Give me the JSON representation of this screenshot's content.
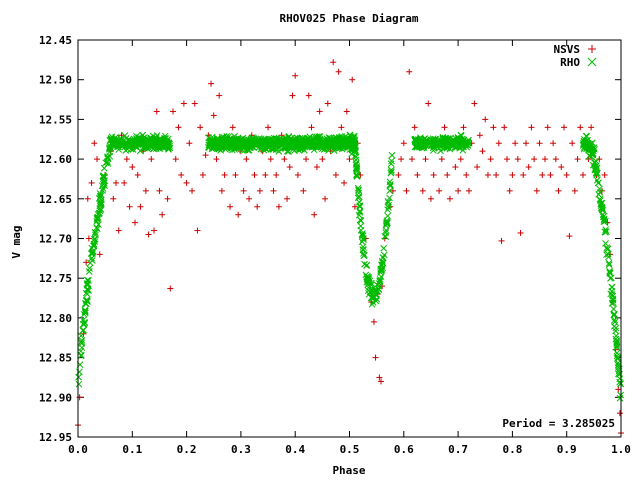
{
  "chart_data": {
    "type": "scatter",
    "title": "RHOV025 Phase Diagram",
    "xlabel": "Phase",
    "ylabel": "V mag",
    "xlim": [
      0.0,
      1.0
    ],
    "ylim": [
      12.95,
      12.45
    ],
    "y_inverted": true,
    "x_ticks": [
      "0.0",
      "0.1",
      "0.2",
      "0.3",
      "0.4",
      "0.5",
      "0.6",
      "0.7",
      "0.8",
      "0.9",
      "1.0"
    ],
    "y_ticks": [
      "12.45",
      "12.50",
      "12.55",
      "12.60",
      "12.65",
      "12.70",
      "12.75",
      "12.80",
      "12.85",
      "12.90",
      "12.95"
    ],
    "annotation": "Period = 3.285025",
    "legend_position": "top-right",
    "series": [
      {
        "name": "NSVS",
        "marker": "plus",
        "color": "#cc0000",
        "points": [
          [
            0.0,
            12.935
          ],
          [
            0.003,
            12.9
          ],
          [
            0.01,
            12.82
          ],
          [
            0.015,
            12.73
          ],
          [
            0.018,
            12.65
          ],
          [
            0.02,
            12.7
          ],
          [
            0.025,
            12.63
          ],
          [
            0.03,
            12.58
          ],
          [
            0.035,
            12.6
          ],
          [
            0.04,
            12.72
          ],
          [
            0.05,
            12.62
          ],
          [
            0.06,
            12.59
          ],
          [
            0.065,
            12.65
          ],
          [
            0.07,
            12.63
          ],
          [
            0.075,
            12.69
          ],
          [
            0.08,
            12.57
          ],
          [
            0.085,
            12.63
          ],
          [
            0.09,
            12.6
          ],
          [
            0.095,
            12.66
          ],
          [
            0.1,
            12.61
          ],
          [
            0.105,
            12.68
          ],
          [
            0.11,
            12.62
          ],
          [
            0.115,
            12.66
          ],
          [
            0.12,
            12.59
          ],
          [
            0.125,
            12.64
          ],
          [
            0.13,
            12.695
          ],
          [
            0.135,
            12.6
          ],
          [
            0.14,
            12.69
          ],
          [
            0.145,
            12.54
          ],
          [
            0.15,
            12.64
          ],
          [
            0.155,
            12.67
          ],
          [
            0.16,
            12.58
          ],
          [
            0.165,
            12.65
          ],
          [
            0.17,
            12.763
          ],
          [
            0.175,
            12.54
          ],
          [
            0.18,
            12.6
          ],
          [
            0.185,
            12.56
          ],
          [
            0.19,
            12.62
          ],
          [
            0.195,
            12.53
          ],
          [
            0.2,
            12.63
          ],
          [
            0.205,
            12.58
          ],
          [
            0.21,
            12.64
          ],
          [
            0.215,
            12.53
          ],
          [
            0.22,
            12.69
          ],
          [
            0.225,
            12.56
          ],
          [
            0.23,
            12.62
          ],
          [
            0.235,
            12.595
          ],
          [
            0.24,
            12.57
          ],
          [
            0.245,
            12.505
          ],
          [
            0.25,
            12.545
          ],
          [
            0.255,
            12.6
          ],
          [
            0.26,
            12.52
          ],
          [
            0.265,
            12.64
          ],
          [
            0.27,
            12.62
          ],
          [
            0.275,
            12.58
          ],
          [
            0.28,
            12.66
          ],
          [
            0.285,
            12.56
          ],
          [
            0.29,
            12.62
          ],
          [
            0.295,
            12.67
          ],
          [
            0.3,
            12.59
          ],
          [
            0.305,
            12.64
          ],
          [
            0.31,
            12.6
          ],
          [
            0.315,
            12.65
          ],
          [
            0.32,
            12.57
          ],
          [
            0.325,
            12.62
          ],
          [
            0.33,
            12.66
          ],
          [
            0.335,
            12.64
          ],
          [
            0.34,
            12.59
          ],
          [
            0.345,
            12.62
          ],
          [
            0.35,
            12.56
          ],
          [
            0.355,
            12.6
          ],
          [
            0.36,
            12.64
          ],
          [
            0.365,
            12.62
          ],
          [
            0.37,
            12.66
          ],
          [
            0.375,
            12.57
          ],
          [
            0.38,
            12.6
          ],
          [
            0.385,
            12.65
          ],
          [
            0.39,
            12.61
          ],
          [
            0.395,
            12.52
          ],
          [
            0.4,
            12.495
          ],
          [
            0.405,
            12.62
          ],
          [
            0.41,
            12.58
          ],
          [
            0.415,
            12.64
          ],
          [
            0.42,
            12.6
          ],
          [
            0.425,
            12.52
          ],
          [
            0.43,
            12.56
          ],
          [
            0.435,
            12.67
          ],
          [
            0.44,
            12.61
          ],
          [
            0.445,
            12.54
          ],
          [
            0.45,
            12.6
          ],
          [
            0.455,
            12.65
          ],
          [
            0.46,
            12.53
          ],
          [
            0.465,
            12.59
          ],
          [
            0.47,
            12.478
          ],
          [
            0.475,
            12.62
          ],
          [
            0.48,
            12.49
          ],
          [
            0.485,
            12.56
          ],
          [
            0.49,
            12.63
          ],
          [
            0.495,
            12.54
          ],
          [
            0.5,
            12.6
          ],
          [
            0.505,
            12.5
          ],
          [
            0.51,
            12.66
          ],
          [
            0.515,
            12.58
          ],
          [
            0.52,
            12.62
          ],
          [
            0.53,
            12.7
          ],
          [
            0.54,
            12.78
          ],
          [
            0.545,
            12.805
          ],
          [
            0.548,
            12.85
          ],
          [
            0.552,
            12.77
          ],
          [
            0.555,
            12.875
          ],
          [
            0.558,
            12.88
          ],
          [
            0.56,
            12.76
          ],
          [
            0.565,
            12.7
          ],
          [
            0.575,
            12.66
          ],
          [
            0.58,
            12.64
          ],
          [
            0.59,
            12.62
          ],
          [
            0.595,
            12.6
          ],
          [
            0.6,
            12.58
          ],
          [
            0.605,
            12.64
          ],
          [
            0.61,
            12.49
          ],
          [
            0.615,
            12.6
          ],
          [
            0.62,
            12.56
          ],
          [
            0.625,
            12.62
          ],
          [
            0.63,
            12.58
          ],
          [
            0.635,
            12.64
          ],
          [
            0.64,
            12.6
          ],
          [
            0.645,
            12.53
          ],
          [
            0.65,
            12.65
          ],
          [
            0.655,
            12.62
          ],
          [
            0.66,
            12.58
          ],
          [
            0.665,
            12.64
          ],
          [
            0.67,
            12.6
          ],
          [
            0.675,
            12.56
          ],
          [
            0.68,
            12.62
          ],
          [
            0.685,
            12.65
          ],
          [
            0.69,
            12.58
          ],
          [
            0.695,
            12.61
          ],
          [
            0.7,
            12.64
          ],
          [
            0.705,
            12.6
          ],
          [
            0.71,
            12.56
          ],
          [
            0.715,
            12.62
          ],
          [
            0.72,
            12.64
          ],
          [
            0.725,
            12.58
          ],
          [
            0.73,
            12.53
          ],
          [
            0.735,
            12.61
          ],
          [
            0.74,
            12.57
          ],
          [
            0.745,
            12.59
          ],
          [
            0.75,
            12.55
          ],
          [
            0.755,
            12.62
          ],
          [
            0.76,
            12.6
          ],
          [
            0.765,
            12.56
          ],
          [
            0.77,
            12.62
          ],
          [
            0.775,
            12.58
          ],
          [
            0.78,
            12.703
          ],
          [
            0.785,
            12.56
          ],
          [
            0.79,
            12.6
          ],
          [
            0.795,
            12.64
          ],
          [
            0.8,
            12.62
          ],
          [
            0.805,
            12.58
          ],
          [
            0.81,
            12.6
          ],
          [
            0.815,
            12.693
          ],
          [
            0.82,
            12.62
          ],
          [
            0.825,
            12.58
          ],
          [
            0.83,
            12.61
          ],
          [
            0.835,
            12.56
          ],
          [
            0.84,
            12.6
          ],
          [
            0.845,
            12.64
          ],
          [
            0.85,
            12.58
          ],
          [
            0.855,
            12.62
          ],
          [
            0.86,
            12.6
          ],
          [
            0.865,
            12.56
          ],
          [
            0.87,
            12.62
          ],
          [
            0.875,
            12.58
          ],
          [
            0.88,
            12.6
          ],
          [
            0.885,
            12.64
          ],
          [
            0.89,
            12.61
          ],
          [
            0.895,
            12.56
          ],
          [
            0.9,
            12.62
          ],
          [
            0.905,
            12.697
          ],
          [
            0.91,
            12.58
          ],
          [
            0.915,
            12.64
          ],
          [
            0.92,
            12.6
          ],
          [
            0.925,
            12.56
          ],
          [
            0.93,
            12.62
          ],
          [
            0.935,
            12.58
          ],
          [
            0.94,
            12.6
          ],
          [
            0.945,
            12.56
          ],
          [
            0.95,
            12.59
          ],
          [
            0.955,
            12.62
          ],
          [
            0.96,
            12.6
          ],
          [
            0.965,
            12.64
          ],
          [
            0.97,
            12.62
          ],
          [
            0.975,
            12.68
          ],
          [
            0.98,
            12.72
          ],
          [
            0.985,
            12.78
          ],
          [
            0.99,
            12.84
          ],
          [
            0.995,
            12.89
          ],
          [
            0.998,
            12.92
          ],
          [
            1.0,
            12.945
          ]
        ]
      },
      {
        "name": "RHO",
        "marker": "cross",
        "color": "#00bb00",
        "points": []
      }
    ]
  }
}
